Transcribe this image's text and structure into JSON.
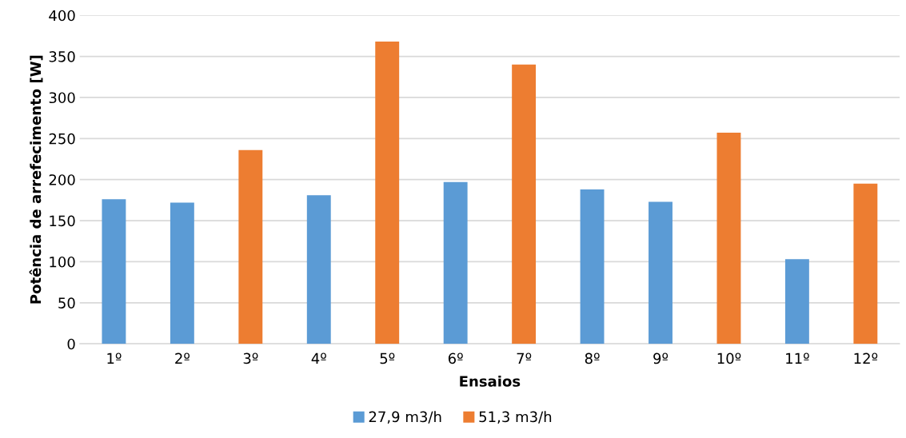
{
  "chart_data": {
    "type": "bar",
    "xlabel": "Ensaios",
    "ylabel": "Potência de arrefecimento [W]",
    "categories": [
      "1º",
      "2º",
      "3º",
      "4º",
      "5º",
      "6º",
      "7º",
      "8º",
      "9º",
      "10º",
      "11º",
      "12º"
    ],
    "series": [
      {
        "name": "27,9 m3/h",
        "color": "#5b9bd5",
        "values": [
          176,
          172,
          null,
          181,
          null,
          197,
          null,
          188,
          173,
          null,
          103,
          null
        ]
      },
      {
        "name": "51,3 m3/h",
        "color": "#ed7d31",
        "values": [
          null,
          null,
          236,
          null,
          368,
          null,
          340,
          null,
          null,
          257,
          null,
          195
        ]
      }
    ],
    "ylim": [
      0,
      400
    ],
    "yticks": [
      0,
      50,
      100,
      150,
      200,
      250,
      300,
      350,
      400
    ],
    "grid": "y",
    "legend": "bottom"
  }
}
